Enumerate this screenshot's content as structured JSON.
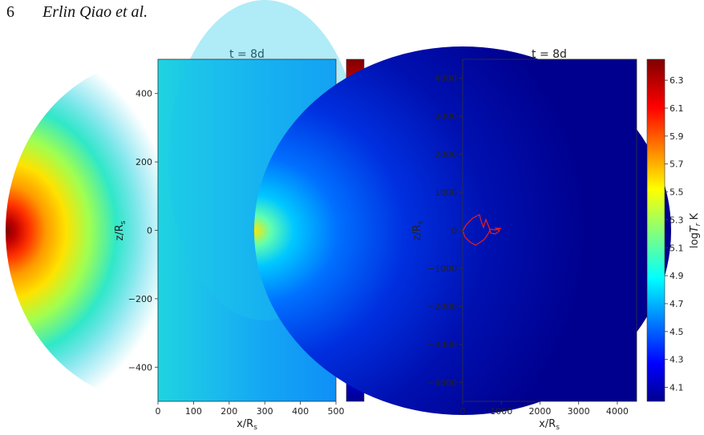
{
  "header": {
    "page_number": "6",
    "running_head": "Erlin Qiao et al."
  },
  "chart_data": [
    {
      "type": "heatmap",
      "title": "t = 8d",
      "xlabel": "x/R",
      "xlabel_sub": "s",
      "ylabel": "z/R",
      "ylabel_sub": "s",
      "xlim": [
        0,
        500
      ],
      "ylim": [
        -500,
        500
      ],
      "xticks": [
        {
          "value": 0,
          "label": "0"
        },
        {
          "value": 100,
          "label": "100"
        },
        {
          "value": 200,
          "label": "200"
        },
        {
          "value": 300,
          "label": "300"
        },
        {
          "value": 400,
          "label": "400"
        },
        {
          "value": 500,
          "label": "500"
        }
      ],
      "yticks": [
        {
          "value": 400,
          "label": "400"
        },
        {
          "value": 200,
          "label": "200"
        },
        {
          "value": 0,
          "label": "0"
        },
        {
          "value": -200,
          "label": "−200"
        },
        {
          "value": -400,
          "label": "−400"
        }
      ],
      "colorbar": {
        "label": "log",
        "label_var": "T",
        "label_sub": "r",
        "label_unit": "K",
        "range": [
          4.0,
          6.45
        ],
        "ticks": [
          "6.3",
          "6.1",
          "5.9",
          "5.7",
          "5.5",
          "5.3",
          "5.1",
          "4.9",
          "4.7",
          "4.5",
          "4.3",
          "4.1"
        ]
      },
      "colors": {
        "bg_top": "#1a9ef2",
        "bg_mid": "#18c8e6",
        "hot_core": "#800000"
      }
    },
    {
      "type": "heatmap",
      "title": "t = 8d",
      "xlabel": "x/R",
      "xlabel_sub": "s",
      "ylabel": "z/R",
      "ylabel_sub": "s",
      "xlim": [
        0,
        4500
      ],
      "ylim": [
        -4500,
        4500
      ],
      "xticks": [
        {
          "value": 0,
          "label": "0"
        },
        {
          "value": 1000,
          "label": "1000"
        },
        {
          "value": 2000,
          "label": "2000"
        },
        {
          "value": 3000,
          "label": "3000"
        },
        {
          "value": 4000,
          "label": "4000"
        }
      ],
      "yticks": [
        {
          "value": 4000,
          "label": "4000"
        },
        {
          "value": 3000,
          "label": "3000"
        },
        {
          "value": 2000,
          "label": "2000"
        },
        {
          "value": 1000,
          "label": "1000"
        },
        {
          "value": 0,
          "label": "0"
        },
        {
          "value": -1000,
          "label": "−1000"
        },
        {
          "value": -2000,
          "label": "−2000"
        },
        {
          "value": -3000,
          "label": "−3000"
        },
        {
          "value": -4000,
          "label": "−4000"
        }
      ],
      "colorbar": {
        "label": "log",
        "label_var": "T",
        "label_sub": "r",
        "label_unit": "K",
        "range": [
          4.0,
          6.45
        ],
        "ticks": [
          "6.3",
          "6.1",
          "5.9",
          "5.7",
          "5.5",
          "5.3",
          "5.1",
          "4.9",
          "4.7",
          "4.5",
          "4.3",
          "4.1"
        ]
      },
      "colors": {
        "bg": "#00008e",
        "contour": "#e4201c"
      }
    }
  ]
}
